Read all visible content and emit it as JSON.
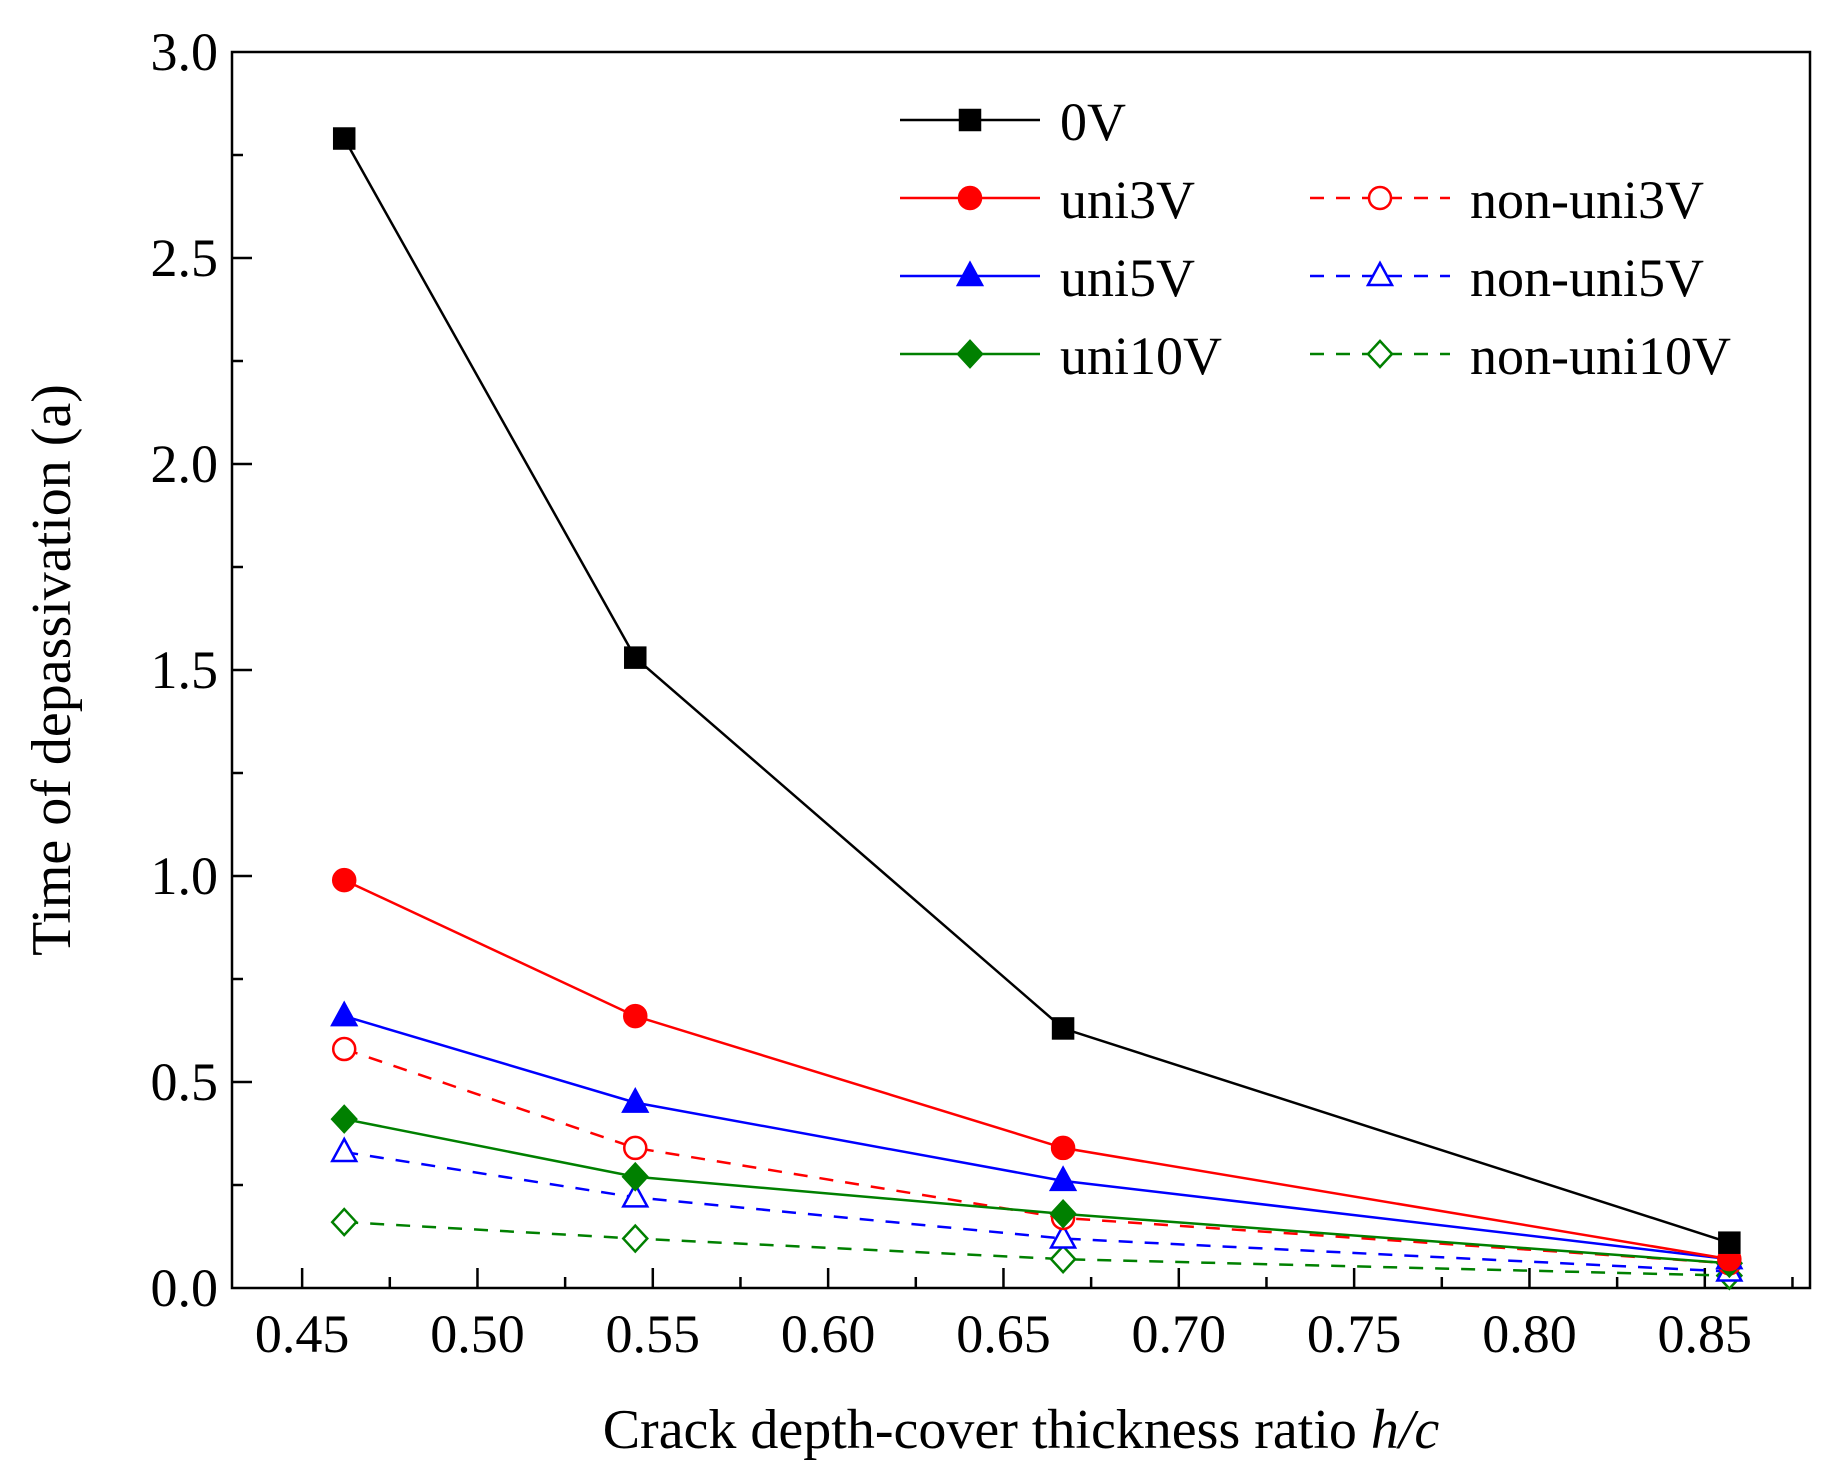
{
  "chart_data": {
    "type": "line",
    "xlabel": "Crack depth-cover thickness ratio ",
    "xlabel_italic": "h/c",
    "ylabel": "Time of depassivation (a)",
    "xlim": [
      0.43,
      0.88
    ],
    "ylim": [
      0.0,
      3.0
    ],
    "x_ticks": [
      "0.45",
      "0.50",
      "0.55",
      "0.60",
      "0.65",
      "0.70",
      "0.75",
      "0.80",
      "0.85"
    ],
    "y_ticks": [
      "0.0",
      "0.5",
      "1.0",
      "1.5",
      "2.0",
      "2.5",
      "3.0"
    ],
    "x": [
      0.462,
      0.545,
      0.667,
      0.857
    ],
    "series": [
      {
        "name": "0V",
        "color": "#000000",
        "dash": false,
        "marker": "square",
        "filled": true,
        "values": [
          2.79,
          1.53,
          0.63,
          0.11
        ]
      },
      {
        "name": "uni3V",
        "color": "#ff0000",
        "dash": false,
        "marker": "circle",
        "filled": true,
        "values": [
          0.99,
          0.66,
          0.34,
          0.07
        ]
      },
      {
        "name": "non-uni3V",
        "color": "#ff0000",
        "dash": true,
        "marker": "circle",
        "filled": false,
        "values": [
          0.58,
          0.34,
          0.17,
          0.06
        ]
      },
      {
        "name": "uni5V",
        "color": "#0000ff",
        "dash": false,
        "marker": "triangle",
        "filled": true,
        "values": [
          0.66,
          0.45,
          0.26,
          0.07
        ]
      },
      {
        "name": "non-uni5V",
        "color": "#0000ff",
        "dash": true,
        "marker": "triangle",
        "filled": false,
        "values": [
          0.33,
          0.22,
          0.12,
          0.04
        ]
      },
      {
        "name": "uni10V",
        "color": "#008000",
        "dash": false,
        "marker": "diamond",
        "filled": true,
        "values": [
          0.41,
          0.27,
          0.18,
          0.06
        ]
      },
      {
        "name": "non-uni10V",
        "color": "#008000",
        "dash": true,
        "marker": "diamond",
        "filled": false,
        "values": [
          0.16,
          0.12,
          0.07,
          0.03
        ]
      }
    ]
  }
}
